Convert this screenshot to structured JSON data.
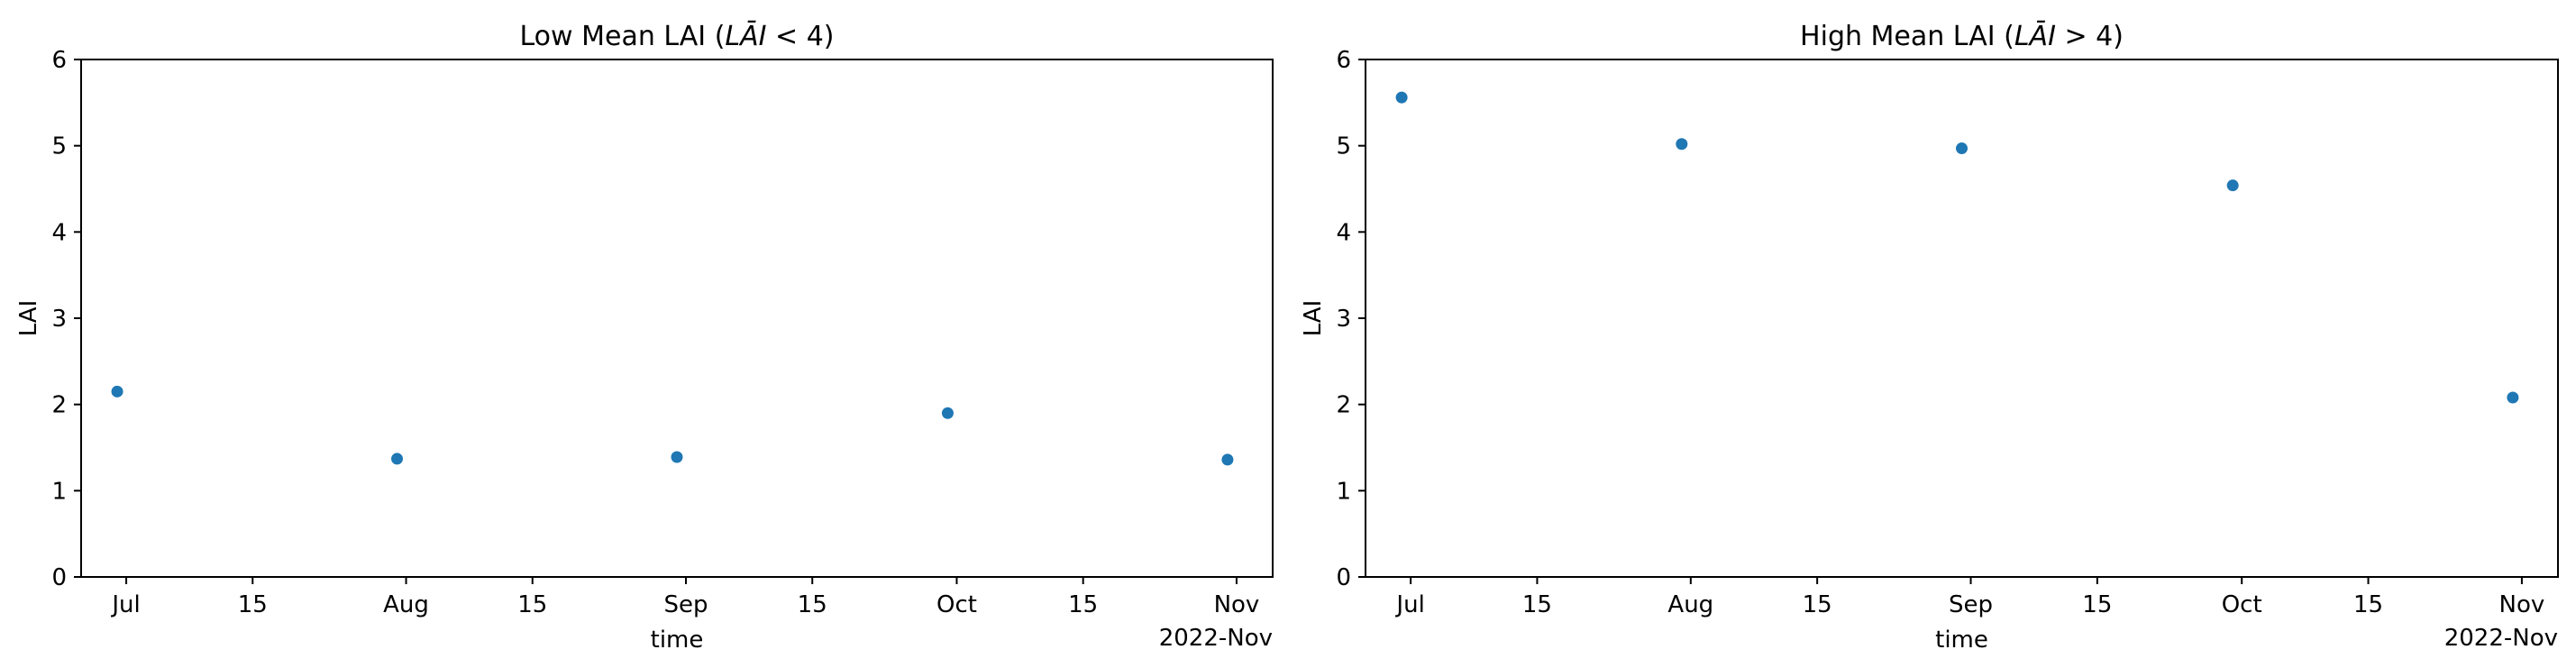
{
  "chart_data": [
    {
      "type": "scatter",
      "title": "Low Mean LAI",
      "title_math_var": "LĀI",
      "title_math_op": " < 4",
      "xlabel": "time",
      "ylabel": "LAI",
      "ylim": [
        0,
        6
      ],
      "xlim": [
        "2022-06-26",
        "2022-11-05"
      ],
      "x_ticks": [
        {
          "date": "2022-07-01",
          "label": "Jul"
        },
        {
          "date": "2022-07-15",
          "label": "15"
        },
        {
          "date": "2022-08-01",
          "label": "Aug"
        },
        {
          "date": "2022-08-15",
          "label": "15"
        },
        {
          "date": "2022-09-01",
          "label": "Sep"
        },
        {
          "date": "2022-09-15",
          "label": "15"
        },
        {
          "date": "2022-10-01",
          "label": "Oct"
        },
        {
          "date": "2022-10-15",
          "label": "15"
        },
        {
          "date": "2022-11-01",
          "label": "Nov"
        }
      ],
      "x_offset_label": "2022-Nov",
      "y_ticks": [
        0,
        1,
        2,
        3,
        4,
        5,
        6
      ],
      "grid": false,
      "points": [
        {
          "x": "2022-06-30",
          "y": 2.15
        },
        {
          "x": "2022-07-31",
          "y": 1.37
        },
        {
          "x": "2022-08-31",
          "y": 1.39
        },
        {
          "x": "2022-09-30",
          "y": 1.9
        },
        {
          "x": "2022-10-31",
          "y": 1.36
        }
      ],
      "color": "#1f77b4"
    },
    {
      "type": "scatter",
      "title": "High Mean LAI",
      "title_math_var": "LĀI",
      "title_math_op": " > 4",
      "xlabel": "time",
      "ylabel": "LAI",
      "ylim": [
        0,
        6
      ],
      "xlim": [
        "2022-06-26",
        "2022-11-05"
      ],
      "x_ticks": [
        {
          "date": "2022-07-01",
          "label": "Jul"
        },
        {
          "date": "2022-07-15",
          "label": "15"
        },
        {
          "date": "2022-08-01",
          "label": "Aug"
        },
        {
          "date": "2022-08-15",
          "label": "15"
        },
        {
          "date": "2022-09-01",
          "label": "Sep"
        },
        {
          "date": "2022-09-15",
          "label": "15"
        },
        {
          "date": "2022-10-01",
          "label": "Oct"
        },
        {
          "date": "2022-10-15",
          "label": "15"
        },
        {
          "date": "2022-11-01",
          "label": "Nov"
        }
      ],
      "x_offset_label": "2022-Nov",
      "y_ticks": [
        0,
        1,
        2,
        3,
        4,
        5,
        6
      ],
      "grid": false,
      "points": [
        {
          "x": "2022-06-30",
          "y": 5.56
        },
        {
          "x": "2022-07-31",
          "y": 5.02
        },
        {
          "x": "2022-08-31",
          "y": 4.97
        },
        {
          "x": "2022-09-30",
          "y": 4.54
        },
        {
          "x": "2022-10-31",
          "y": 2.08
        }
      ],
      "color": "#1f77b4"
    }
  ]
}
